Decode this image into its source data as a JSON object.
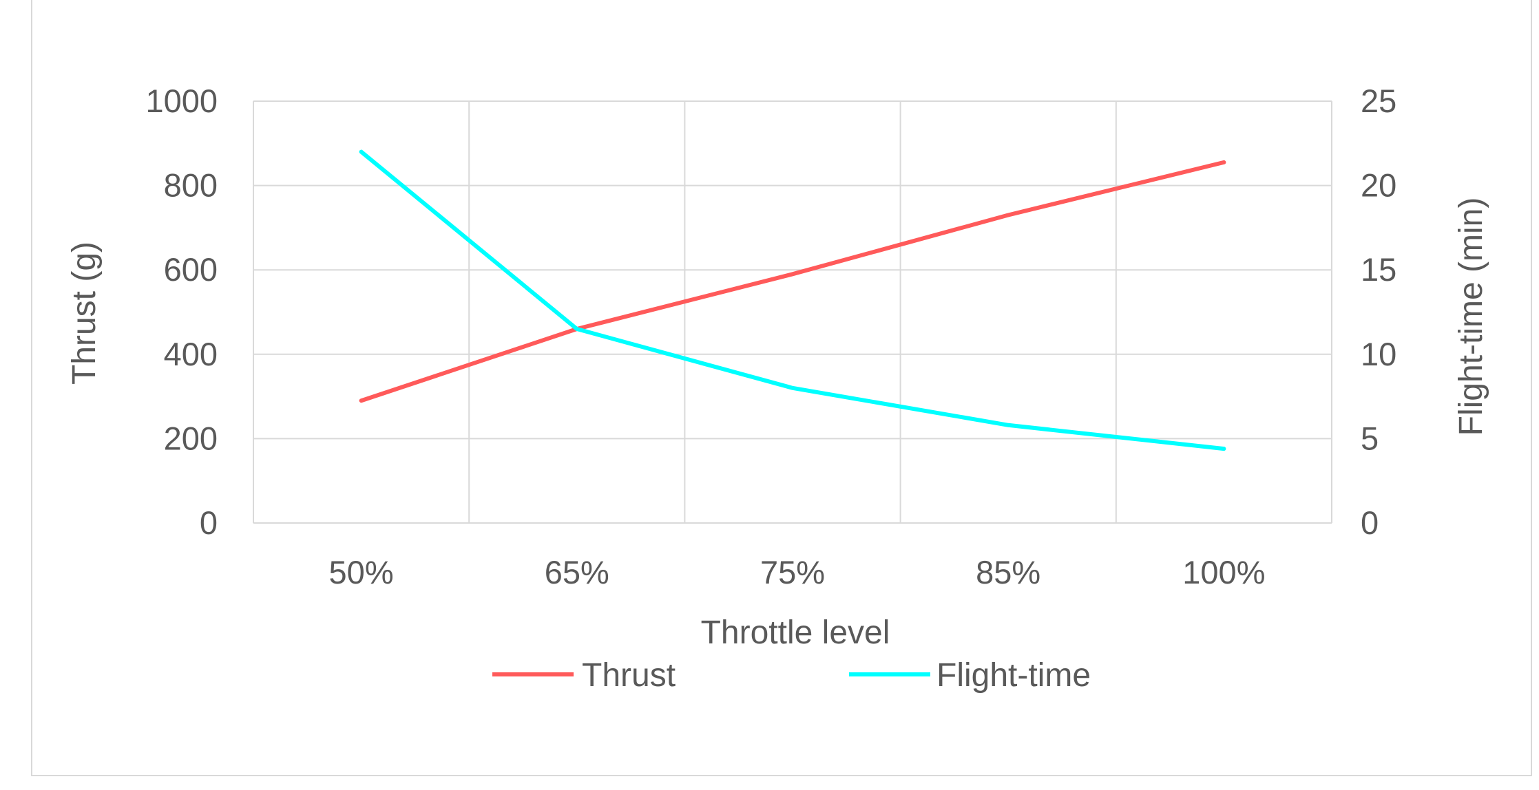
{
  "chart_data": {
    "type": "line",
    "categories": [
      "50%",
      "65%",
      "75%",
      "85%",
      "100%"
    ],
    "xlabel": "Throttle level",
    "ylabel_left": "Thrust (g)",
    "ylabel_right": "Flight-time (min)",
    "ylim_left": [
      0,
      1000
    ],
    "ylim_right": [
      0,
      25
    ],
    "yticks_left": [
      0,
      200,
      400,
      600,
      800,
      1000
    ],
    "yticks_right": [
      0,
      5,
      10,
      15,
      20,
      25
    ],
    "grid": true,
    "legend_position": "bottom",
    "series": [
      {
        "name": "Thrust",
        "axis": "left",
        "color": "#ff5a5a",
        "values": [
          290,
          460,
          590,
          730,
          855
        ]
      },
      {
        "name": "Flight-time",
        "axis": "right",
        "color": "#00ffff",
        "values": [
          22,
          11.5,
          8,
          5.8,
          4.4
        ]
      }
    ]
  }
}
